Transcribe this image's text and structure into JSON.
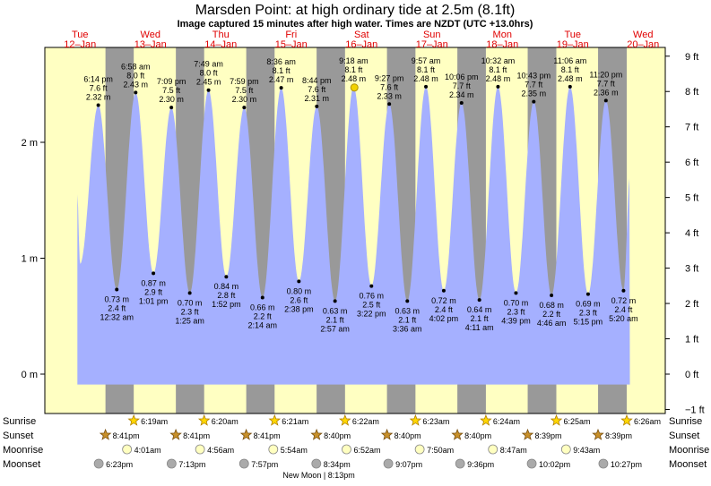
{
  "title": "Marsden Point: at high  ordinary tide at 2.5m (8.1ft)",
  "subtitle": "Image captured 15 minutes after high water. Times are NZDT (UTC +13.0hrs)",
  "days": [
    {
      "dow": "Tue",
      "date": "12–Jan"
    },
    {
      "dow": "Wed",
      "date": "13–Jan"
    },
    {
      "dow": "Thu",
      "date": "14–Jan"
    },
    {
      "dow": "Fri",
      "date": "15–Jan"
    },
    {
      "dow": "Sat",
      "date": "16–Jan"
    },
    {
      "dow": "Sun",
      "date": "17–Jan"
    },
    {
      "dow": "Mon",
      "date": "18–Jan"
    },
    {
      "dow": "Tue",
      "date": "19–Jan"
    },
    {
      "dow": "Wed",
      "date": "20–Jan"
    }
  ],
  "chart_data": {
    "type": "area",
    "x_unit": "hours since 00:00 Tue 12-Jan (NZDT)",
    "y_unit": "m",
    "ylim": [
      -0.1,
      2.85
    ],
    "left_ticks": [
      {
        "v": 0,
        "label": "0 m"
      },
      {
        "v": 1,
        "label": "1 m"
      },
      {
        "v": 2,
        "label": "2 m"
      }
    ],
    "right_ticks_ft": [
      {
        "v": -1,
        "label": "−1 ft"
      },
      {
        "v": 0,
        "label": "0 ft"
      },
      {
        "v": 1,
        "label": "1 ft"
      },
      {
        "v": 2,
        "label": "2 ft"
      },
      {
        "v": 3,
        "label": "3 ft"
      },
      {
        "v": 4,
        "label": "4 ft"
      },
      {
        "v": 5,
        "label": "5 ft"
      },
      {
        "v": 6,
        "label": "6 ft"
      },
      {
        "v": 7,
        "label": "7 ft"
      },
      {
        "v": 8,
        "label": "8 ft"
      },
      {
        "v": 9,
        "label": "9 ft"
      }
    ],
    "tides": [
      {
        "kind": "high",
        "time": "6:14 pm",
        "t": 18.23,
        "m": 2.32,
        "ft": "7.6 ft",
        "ml": "2.32 m"
      },
      {
        "kind": "low",
        "time": "12:32 am",
        "t": 24.53,
        "m": 0.73,
        "ft": "2.4 ft",
        "ml": "0.73 m"
      },
      {
        "kind": "high",
        "time": "6:58 am",
        "t": 30.97,
        "m": 2.43,
        "ft": "8.0 ft",
        "ml": "2.43 m"
      },
      {
        "kind": "low",
        "time": "1:01 pm",
        "t": 37.02,
        "m": 0.87,
        "ft": "2.9 ft",
        "ml": "0.87 m"
      },
      {
        "kind": "high",
        "time": "7:09 pm",
        "t": 43.15,
        "m": 2.3,
        "ft": "7.5 ft",
        "ml": "2.30 m"
      },
      {
        "kind": "low",
        "time": "1:25 am",
        "t": 49.42,
        "m": 0.7,
        "ft": "2.3 ft",
        "ml": "0.70 m"
      },
      {
        "kind": "high",
        "time": "7:49 am",
        "t": 55.82,
        "m": 2.45,
        "ft": "8.0 ft",
        "ml": "2.45 m"
      },
      {
        "kind": "low",
        "time": "1:52 pm",
        "t": 61.87,
        "m": 0.84,
        "ft": "2.8 ft",
        "ml": "0.84 m"
      },
      {
        "kind": "high",
        "time": "7:59 pm",
        "t": 67.98,
        "m": 2.3,
        "ft": "7.5 ft",
        "ml": "2.30 m"
      },
      {
        "kind": "low",
        "time": "2:14 am",
        "t": 74.23,
        "m": 0.66,
        "ft": "2.2 ft",
        "ml": "0.66 m"
      },
      {
        "kind": "high",
        "time": "8:36 am",
        "t": 80.6,
        "m": 2.47,
        "ft": "8.1 ft",
        "ml": "2.47 m"
      },
      {
        "kind": "low",
        "time": "2:38 pm",
        "t": 86.63,
        "m": 0.8,
        "ft": "2.6 ft",
        "ml": "0.80 m"
      },
      {
        "kind": "high",
        "time": "8:44 pm",
        "t": 92.73,
        "m": 2.31,
        "ft": "7.6 ft",
        "ml": "2.31 m"
      },
      {
        "kind": "low",
        "time": "2:57 am",
        "t": 98.95,
        "m": 0.63,
        "ft": "2.1 ft",
        "ml": "0.63 m"
      },
      {
        "kind": "high",
        "time": "9:18 am",
        "t": 105.3,
        "m": 2.48,
        "ft": "8.1 ft",
        "ml": "2.48 m"
      },
      {
        "kind": "low",
        "time": "3:22 pm",
        "t": 111.37,
        "m": 0.76,
        "ft": "2.5 ft",
        "ml": "0.76 m"
      },
      {
        "kind": "high",
        "time": "9:27 pm",
        "t": 117.45,
        "m": 2.33,
        "ft": "7.6 ft",
        "ml": "2.33 m"
      },
      {
        "kind": "low",
        "time": "3:36 am",
        "t": 123.6,
        "m": 0.63,
        "ft": "2.1 ft",
        "ml": "0.63 m"
      },
      {
        "kind": "high",
        "time": "9:57 am",
        "t": 129.95,
        "m": 2.48,
        "ft": "8.1 ft",
        "ml": "2.48 m"
      },
      {
        "kind": "low",
        "time": "4:02 pm",
        "t": 136.03,
        "m": 0.72,
        "ft": "2.4 ft",
        "ml": "0.72 m"
      },
      {
        "kind": "high",
        "time": "10:06 pm",
        "t": 142.1,
        "m": 2.34,
        "ft": "7.7 ft",
        "ml": "2.34 m"
      },
      {
        "kind": "low",
        "time": "4:11 am",
        "t": 148.18,
        "m": 0.64,
        "ft": "2.1 ft",
        "ml": "0.64 m"
      },
      {
        "kind": "high",
        "time": "10:32 am",
        "t": 154.53,
        "m": 2.48,
        "ft": "8.1 ft",
        "ml": "2.48 m"
      },
      {
        "kind": "low",
        "time": "4:39 pm",
        "t": 160.65,
        "m": 0.7,
        "ft": "2.3 ft",
        "ml": "0.70 m"
      },
      {
        "kind": "high",
        "time": "10:43 pm",
        "t": 166.72,
        "m": 2.35,
        "ft": "7.7 ft",
        "ml": "2.35 m"
      },
      {
        "kind": "low",
        "time": "4:46 am",
        "t": 172.77,
        "m": 0.68,
        "ft": "2.2 ft",
        "ml": "0.68 m"
      },
      {
        "kind": "high",
        "time": "11:06 am",
        "t": 179.1,
        "m": 2.48,
        "ft": "8.1 ft",
        "ml": "2.48 m"
      },
      {
        "kind": "low",
        "time": "5:15 pm",
        "t": 185.25,
        "m": 0.69,
        "ft": "2.3 ft",
        "ml": "0.69 m"
      },
      {
        "kind": "high",
        "time": "11:20 pm",
        "t": 191.33,
        "m": 2.36,
        "ft": "7.7 ft",
        "ml": "2.36 m"
      },
      {
        "kind": "low",
        "time": "5:20 am",
        "t": 197.33,
        "m": 0.72,
        "ft": "2.4 ft",
        "ml": "0.72 m"
      }
    ],
    "curve_start": {
      "t": 15.5,
      "m": 1.65
    },
    "curve_first_low": {
      "t": 12.0,
      "m": 0.95
    },
    "curve_end": {
      "t": 199.5,
      "m": 1.7
    },
    "now_t": 105.55,
    "colors": {
      "water": "#a5b0ff",
      "day": "#ffffc2",
      "night": "#999999",
      "dot": "#000000",
      "nowdot": "#f2d200"
    }
  },
  "sun_moon": {
    "row_labels": [
      "Sunrise",
      "Sunset",
      "Moonrise",
      "Moonset"
    ],
    "sunrise": [
      {
        "t": 30.32,
        "time": "6:19am"
      },
      {
        "t": 54.33,
        "time": "6:20am"
      },
      {
        "t": 78.35,
        "time": "6:21am"
      },
      {
        "t": 102.37,
        "time": "6:22am"
      },
      {
        "t": 126.38,
        "time": "6:23am"
      },
      {
        "t": 150.4,
        "time": "6:24am"
      },
      {
        "t": 174.42,
        "time": "6:25am"
      },
      {
        "t": 198.43,
        "time": "6:26am"
      }
    ],
    "sunset": [
      {
        "t": 20.68,
        "time": "8:41pm"
      },
      {
        "t": 44.68,
        "time": "8:41pm"
      },
      {
        "t": 68.68,
        "time": "8:41pm"
      },
      {
        "t": 92.67,
        "time": "8:40pm"
      },
      {
        "t": 116.67,
        "time": "8:40pm"
      },
      {
        "t": 140.67,
        "time": "8:40pm"
      },
      {
        "t": 164.65,
        "time": "8:39pm"
      },
      {
        "t": 188.65,
        "time": "8:39pm"
      }
    ],
    "moonrise": [
      {
        "t": 28.02,
        "time": "4:01am"
      },
      {
        "t": 52.93,
        "time": "4:56am"
      },
      {
        "t": 77.9,
        "time": "5:54am"
      },
      {
        "t": 102.87,
        "time": "6:52am"
      },
      {
        "t": 127.83,
        "time": "7:50am"
      },
      {
        "t": 152.78,
        "time": "8:47am"
      },
      {
        "t": 177.72,
        "time": "9:43am"
      }
    ],
    "moonset": [
      {
        "t": 18.38,
        "time": "6:23pm"
      },
      {
        "t": 43.22,
        "time": "7:13pm"
      },
      {
        "t": 67.95,
        "time": "7:57pm"
      },
      {
        "t": 92.57,
        "time": "8:34pm"
      },
      {
        "t": 117.12,
        "time": "9:07pm"
      },
      {
        "t": 141.6,
        "time": "9:36pm"
      },
      {
        "t": 166.03,
        "time": "10:02pm"
      },
      {
        "t": 190.45,
        "time": "10:27pm"
      }
    ],
    "new_moon": "New Moon | 8:13pm",
    "new_moon_t": 92.2
  }
}
